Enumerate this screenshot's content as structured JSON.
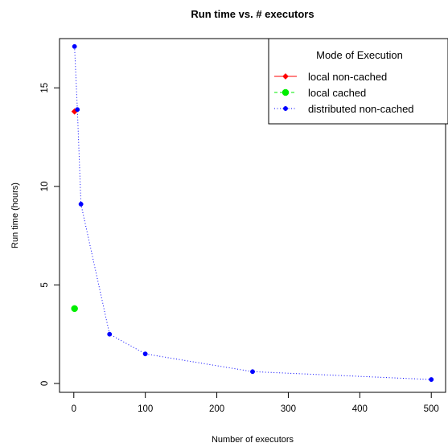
{
  "chart_data": {
    "type": "line",
    "title": "Run time vs. # executors",
    "xlabel": "Number of executors",
    "ylabel": "Run time (hours)",
    "xlim": [
      -20,
      520
    ],
    "ylim": [
      -0.45,
      17.5
    ],
    "xticks": [
      0,
      100,
      200,
      300,
      400,
      500
    ],
    "yticks": [
      0,
      5,
      10,
      15
    ],
    "grid": false,
    "legend": {
      "title": "Mode of Execution",
      "position": "top-right"
    },
    "series": [
      {
        "name": "local non-cached",
        "color": "#ff0000",
        "line_style": "solid",
        "marker": "diamond",
        "x": [
          1
        ],
        "y": [
          13.8
        ]
      },
      {
        "name": "local cached",
        "color": "#00ee00",
        "line_style": "dashed",
        "marker": "circle-large",
        "x": [
          1
        ],
        "y": [
          3.8
        ]
      },
      {
        "name": "distributed non-cached",
        "color": "#0000ff",
        "line_style": "dotted",
        "marker": "circle",
        "x": [
          1,
          5,
          10,
          50,
          100,
          250,
          500
        ],
        "y": [
          17.1,
          13.9,
          9.1,
          2.5,
          1.5,
          0.6,
          0.2
        ]
      }
    ]
  }
}
